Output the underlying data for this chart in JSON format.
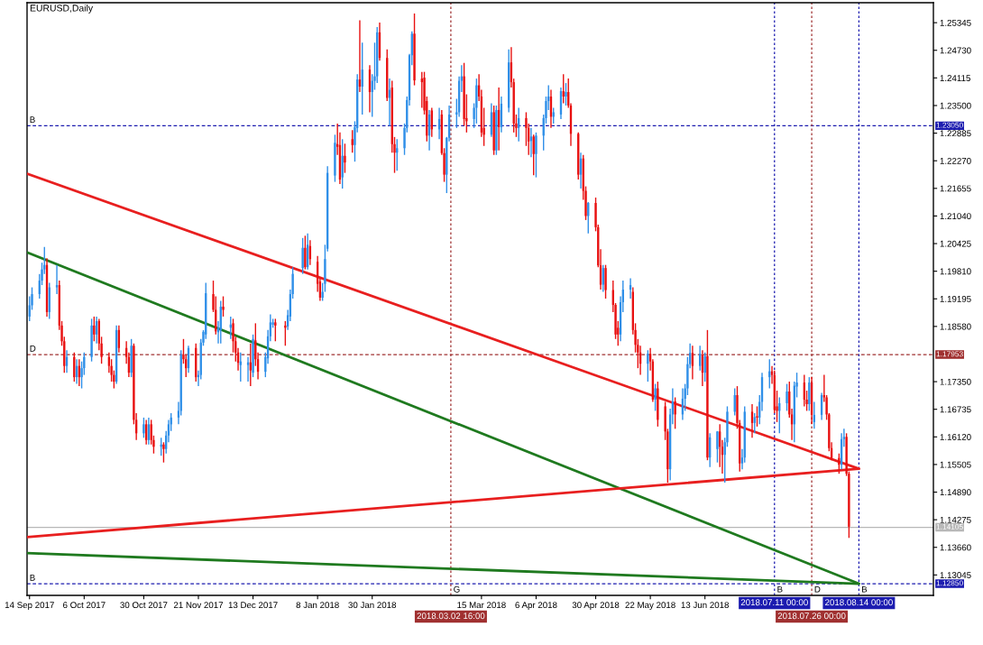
{
  "chart_data": {
    "type": "candlestick",
    "title": "EURUSD,Daily",
    "x": [
      "2017-09-14",
      "2017-09-15",
      "2017-09-18",
      "2017-09-19",
      "2017-09-20",
      "2017-09-21",
      "2017-09-22",
      "2017-09-25",
      "2017-09-26",
      "2017-09-27",
      "2017-09-28",
      "2017-09-29",
      "2017-10-02",
      "2017-10-03",
      "2017-10-04",
      "2017-10-05",
      "2017-10-06",
      "2017-10-09",
      "2017-10-10",
      "2017-10-11",
      "2017-10-12",
      "2017-10-13",
      "2017-10-16",
      "2017-10-17",
      "2017-10-18",
      "2017-10-19",
      "2017-10-20",
      "2017-10-23",
      "2017-10-24",
      "2017-10-25",
      "2017-10-26",
      "2017-10-27",
      "2017-10-30",
      "2017-10-31",
      "2017-11-01",
      "2017-11-02",
      "2017-11-03",
      "2017-11-06",
      "2017-11-07",
      "2017-11-08",
      "2017-11-09",
      "2017-11-10",
      "2017-11-13",
      "2017-11-14",
      "2017-11-15",
      "2017-11-16",
      "2017-11-17",
      "2017-11-20",
      "2017-11-21",
      "2017-11-22",
      "2017-11-23",
      "2017-11-24",
      "2017-11-27",
      "2017-11-28",
      "2017-11-29",
      "2017-11-30",
      "2017-12-01",
      "2017-12-04",
      "2017-12-05",
      "2017-12-06",
      "2017-12-07",
      "2017-12-08",
      "2017-12-11",
      "2017-12-12",
      "2017-12-13",
      "2017-12-14",
      "2017-12-15",
      "2017-12-18",
      "2017-12-19",
      "2017-12-20",
      "2017-12-21",
      "2017-12-22",
      "2017-12-26",
      "2017-12-27",
      "2017-12-28",
      "2017-12-29",
      "2018-01-02",
      "2018-01-03",
      "2018-01-04",
      "2018-01-05",
      "2018-01-08",
      "2018-01-09",
      "2018-01-10",
      "2018-01-11",
      "2018-01-12",
      "2018-01-15",
      "2018-01-16",
      "2018-01-17",
      "2018-01-18",
      "2018-01-19",
      "2018-01-22",
      "2018-01-23",
      "2018-01-24",
      "2018-01-25",
      "2018-01-26",
      "2018-01-29",
      "2018-01-30",
      "2018-01-31",
      "2018-02-01",
      "2018-02-02",
      "2018-02-05",
      "2018-02-06",
      "2018-02-07",
      "2018-02-08",
      "2018-02-09",
      "2018-02-12",
      "2018-02-13",
      "2018-02-14",
      "2018-02-15",
      "2018-02-16",
      "2018-02-19",
      "2018-02-20",
      "2018-02-21",
      "2018-02-22",
      "2018-02-23",
      "2018-02-26",
      "2018-02-27",
      "2018-02-28",
      "2018-03-01",
      "2018-03-02",
      "2018-03-05",
      "2018-03-06",
      "2018-03-07",
      "2018-03-08",
      "2018-03-09",
      "2018-03-12",
      "2018-03-13",
      "2018-03-14",
      "2018-03-15",
      "2018-03-16",
      "2018-03-19",
      "2018-03-20",
      "2018-03-21",
      "2018-03-22",
      "2018-03-23",
      "2018-03-26",
      "2018-03-27",
      "2018-03-28",
      "2018-03-29",
      "2018-03-30",
      "2018-04-02",
      "2018-04-03",
      "2018-04-04",
      "2018-04-05",
      "2018-04-06",
      "2018-04-09",
      "2018-04-10",
      "2018-04-11",
      "2018-04-12",
      "2018-04-13",
      "2018-04-16",
      "2018-04-17",
      "2018-04-18",
      "2018-04-19",
      "2018-04-20",
      "2018-04-23",
      "2018-04-24",
      "2018-04-25",
      "2018-04-26",
      "2018-04-27",
      "2018-04-30",
      "2018-05-01",
      "2018-05-02",
      "2018-05-03",
      "2018-05-04",
      "2018-05-07",
      "2018-05-08",
      "2018-05-09",
      "2018-05-10",
      "2018-05-11",
      "2018-05-14",
      "2018-05-15",
      "2018-05-16",
      "2018-05-17",
      "2018-05-18",
      "2018-05-21",
      "2018-05-22",
      "2018-05-23",
      "2018-05-24",
      "2018-05-25",
      "2018-05-28",
      "2018-05-29",
      "2018-05-30",
      "2018-05-31",
      "2018-06-01",
      "2018-06-04",
      "2018-06-05",
      "2018-06-06",
      "2018-06-07",
      "2018-06-08",
      "2018-06-11",
      "2018-06-12",
      "2018-06-13",
      "2018-06-14",
      "2018-06-15",
      "2018-06-18",
      "2018-06-19",
      "2018-06-20",
      "2018-06-21",
      "2018-06-22",
      "2018-06-25",
      "2018-06-26",
      "2018-06-27",
      "2018-06-28",
      "2018-06-29",
      "2018-07-02",
      "2018-07-03",
      "2018-07-04",
      "2018-07-05",
      "2018-07-06",
      "2018-07-09",
      "2018-07-10",
      "2018-07-11",
      "2018-07-12",
      "2018-07-13",
      "2018-07-16",
      "2018-07-17",
      "2018-07-18",
      "2018-07-19",
      "2018-07-20",
      "2018-07-23",
      "2018-07-24",
      "2018-07-25",
      "2018-07-26",
      "2018-07-27",
      "2018-07-30",
      "2018-07-31",
      "2018-08-01",
      "2018-08-02",
      "2018-08-03",
      "2018-08-06",
      "2018-08-07",
      "2018-08-08",
      "2018-08-09",
      "2018-08-10"
    ],
    "ohlc": [
      [
        1.188,
        1.1925,
        1.187,
        1.1905
      ],
      [
        1.1905,
        1.1945,
        1.1895,
        1.193
      ],
      [
        1.193,
        1.1975,
        1.192,
        1.196
      ],
      [
        1.196,
        1.2,
        1.195,
        1.1985
      ],
      [
        1.1985,
        1.2035,
        1.1975,
        1.1995
      ],
      [
        1.1995,
        1.201,
        1.188,
        1.189
      ],
      [
        1.189,
        1.1955,
        1.1875,
        1.1945
      ],
      [
        1.1945,
        1.1995,
        1.193,
        1.195
      ],
      [
        1.195,
        1.196,
        1.185,
        1.186
      ],
      [
        1.186,
        1.187,
        1.1815,
        1.1825
      ],
      [
        1.1825,
        1.1835,
        1.1755,
        1.177
      ],
      [
        1.177,
        1.1805,
        1.1755,
        1.179
      ],
      [
        1.179,
        1.18,
        1.1735,
        1.1745
      ],
      [
        1.1745,
        1.1785,
        1.173,
        1.177
      ],
      [
        1.177,
        1.1785,
        1.1725,
        1.1745
      ],
      [
        1.1745,
        1.178,
        1.172,
        1.1765
      ],
      [
        1.1765,
        1.18,
        1.175,
        1.179
      ],
      [
        1.179,
        1.1875,
        1.178,
        1.186
      ],
      [
        1.186,
        1.188,
        1.1825,
        1.184
      ],
      [
        1.184,
        1.188,
        1.182,
        1.187
      ],
      [
        1.187,
        1.1875,
        1.1805,
        1.182
      ],
      [
        1.182,
        1.1835,
        1.1775,
        1.179
      ],
      [
        1.179,
        1.18,
        1.1755,
        1.177
      ],
      [
        1.177,
        1.1785,
        1.1735,
        1.175
      ],
      [
        1.175,
        1.176,
        1.172,
        1.1735
      ],
      [
        1.1735,
        1.186,
        1.173,
        1.185
      ],
      [
        1.185,
        1.186,
        1.18,
        1.181
      ],
      [
        1.181,
        1.1825,
        1.1775,
        1.179
      ],
      [
        1.179,
        1.18,
        1.1745,
        1.1755
      ],
      [
        1.1755,
        1.183,
        1.1745,
        1.1815
      ],
      [
        1.1815,
        1.182,
        1.164,
        1.165
      ],
      [
        1.165,
        1.1665,
        1.1605,
        1.162
      ],
      [
        1.162,
        1.1655,
        1.161,
        1.164
      ],
      [
        1.164,
        1.165,
        1.1595,
        1.1605
      ],
      [
        1.1605,
        1.1655,
        1.1595,
        1.164
      ],
      [
        1.164,
        1.165,
        1.1595,
        1.1605
      ],
      [
        1.1605,
        1.1615,
        1.1575,
        1.159
      ],
      [
        1.159,
        1.161,
        1.157,
        1.1595
      ],
      [
        1.1595,
        1.16,
        1.1555,
        1.1585
      ],
      [
        1.1585,
        1.1625,
        1.1575,
        1.1615
      ],
      [
        1.1615,
        1.165,
        1.16,
        1.164
      ],
      [
        1.164,
        1.1665,
        1.1625,
        1.1655
      ],
      [
        1.1655,
        1.169,
        1.164,
        1.167
      ],
      [
        1.167,
        1.1805,
        1.166,
        1.1795
      ],
      [
        1.1795,
        1.183,
        1.1775,
        1.1785
      ],
      [
        1.1785,
        1.1795,
        1.1745,
        1.1765
      ],
      [
        1.1765,
        1.1815,
        1.1755,
        1.181
      ],
      [
        1.181,
        1.182,
        1.1735,
        1.1745
      ],
      [
        1.1745,
        1.176,
        1.1725,
        1.175
      ],
      [
        1.175,
        1.183,
        1.174,
        1.1822
      ],
      [
        1.1822,
        1.185,
        1.1815,
        1.1846
      ],
      [
        1.184,
        1.1955,
        1.183,
        1.1932
      ],
      [
        1.193,
        1.196,
        1.189,
        1.1895
      ],
      [
        1.1895,
        1.1925,
        1.184,
        1.1847
      ],
      [
        1.1845,
        1.187,
        1.182,
        1.1855
      ],
      [
        1.185,
        1.1915,
        1.182,
        1.1902
      ],
      [
        1.1902,
        1.1925,
        1.188,
        1.1895
      ],
      [
        1.1855,
        1.188,
        1.183,
        1.1862
      ],
      [
        1.1865,
        1.1875,
        1.18,
        1.1825
      ],
      [
        1.1825,
        1.1835,
        1.178,
        1.18
      ],
      [
        1.18,
        1.181,
        1.176,
        1.1777
      ],
      [
        1.1772,
        1.18,
        1.1735,
        1.178
      ],
      [
        1.1772,
        1.179,
        1.1735,
        1.1778
      ],
      [
        1.1778,
        1.182,
        1.1725,
        1.176
      ],
      [
        1.1755,
        1.184,
        1.1745,
        1.183
      ],
      [
        1.1827,
        1.1865,
        1.177,
        1.1785
      ],
      [
        1.1785,
        1.18,
        1.174,
        1.1757
      ],
      [
        1.1757,
        1.18,
        1.1745,
        1.179
      ],
      [
        1.1787,
        1.185,
        1.1775,
        1.1836
      ],
      [
        1.1836,
        1.1885,
        1.1825,
        1.1867
      ],
      [
        1.1862,
        1.1875,
        1.1855,
        1.1867
      ],
      [
        1.1867,
        1.1875,
        1.1825,
        1.186
      ],
      [
        1.186,
        1.187,
        1.1815,
        1.1855
      ],
      [
        1.1858,
        1.1895,
        1.185,
        1.1883
      ],
      [
        1.188,
        1.194,
        1.187,
        1.193
      ],
      [
        1.193,
        1.199,
        1.192,
        1.1975
      ],
      [
        1.1988,
        1.2055,
        1.1975,
        1.2033
      ],
      [
        1.2033,
        1.206,
        1.1985,
        1.199
      ],
      [
        1.199,
        1.2065,
        1.1985,
        1.204
      ],
      [
        1.2037,
        1.205,
        1.1995,
        1.2008
      ],
      [
        1.2002,
        1.2015,
        1.1935,
        1.1953
      ],
      [
        1.1958,
        1.1965,
        1.1915,
        1.1922
      ],
      [
        1.1922,
        1.1955,
        1.1915,
        1.1935
      ],
      [
        1.1953,
        1.204,
        1.1935,
        1.2008
      ],
      [
        1.2031,
        1.2215,
        1.2025,
        1.22
      ],
      [
        1.2194,
        1.2285,
        1.218,
        1.2267
      ],
      [
        1.2264,
        1.231,
        1.224,
        1.2258
      ],
      [
        1.2262,
        1.229,
        1.2175,
        1.2185
      ],
      [
        1.219,
        1.2275,
        1.2165,
        1.2238
      ],
      [
        1.2238,
        1.2265,
        1.22,
        1.2223
      ],
      [
        1.2275,
        1.2295,
        1.2245,
        1.2262
      ],
      [
        1.2262,
        1.2315,
        1.2225,
        1.2302
      ],
      [
        1.23,
        1.242,
        1.229,
        1.2408
      ],
      [
        1.2408,
        1.254,
        1.238,
        1.2392
      ],
      [
        1.2392,
        1.249,
        1.233,
        1.243
      ],
      [
        1.243,
        1.244,
        1.2335,
        1.238
      ],
      [
        1.238,
        1.242,
        1.2325,
        1.2405
      ],
      [
        1.2405,
        1.249,
        1.2385,
        1.2415
      ],
      [
        1.2415,
        1.2525,
        1.24,
        1.2513
      ],
      [
        1.2513,
        1.2535,
        1.245,
        1.2456
      ],
      [
        1.2456,
        1.2475,
        1.236,
        1.2367
      ],
      [
        1.2367,
        1.241,
        1.2305,
        1.2385
      ],
      [
        1.239,
        1.2405,
        1.2245,
        1.2264
      ],
      [
        1.2264,
        1.228,
        1.22,
        1.2245
      ],
      [
        1.2245,
        1.2275,
        1.2205,
        1.2255
      ],
      [
        1.2255,
        1.231,
        1.224,
        1.23
      ],
      [
        1.23,
        1.237,
        1.229,
        1.2362
      ],
      [
        1.2362,
        1.2465,
        1.235,
        1.2462
      ],
      [
        1.2462,
        1.2515,
        1.244,
        1.251
      ],
      [
        1.251,
        1.2555,
        1.2395,
        1.2406
      ],
      [
        1.241,
        1.2425,
        1.2345,
        1.2402
      ],
      [
        1.2412,
        1.2425,
        1.233,
        1.2339
      ],
      [
        1.236,
        1.237,
        1.227,
        1.2283
      ],
      [
        1.2283,
        1.234,
        1.225,
        1.233
      ],
      [
        1.2339,
        1.2345,
        1.228,
        1.2297
      ],
      [
        1.2297,
        1.2345,
        1.2275,
        1.232
      ],
      [
        1.233,
        1.234,
        1.224,
        1.2244
      ],
      [
        1.2244,
        1.2255,
        1.218,
        1.2196
      ],
      [
        1.2196,
        1.228,
        1.2155,
        1.2278
      ],
      [
        1.2278,
        1.235,
        1.227,
        1.233
      ],
      [
        1.233,
        1.2365,
        1.23,
        1.2335
      ],
      [
        1.2335,
        1.2415,
        1.2325,
        1.2405
      ],
      [
        1.2405,
        1.244,
        1.238,
        1.2415
      ],
      [
        1.2415,
        1.2445,
        1.2305,
        1.232
      ],
      [
        1.2322,
        1.2375,
        1.229,
        1.2315
      ],
      [
        1.232,
        1.2355,
        1.23,
        1.2345
      ],
      [
        1.2345,
        1.241,
        1.231,
        1.2395
      ],
      [
        1.2395,
        1.242,
        1.236,
        1.237
      ],
      [
        1.237,
        1.2385,
        1.228,
        1.229
      ],
      [
        1.23,
        1.2345,
        1.226,
        1.2285
      ],
      [
        1.2285,
        1.2355,
        1.228,
        1.2335
      ],
      [
        1.2335,
        1.235,
        1.224,
        1.225
      ],
      [
        1.225,
        1.235,
        1.224,
        1.234
      ],
      [
        1.234,
        1.239,
        1.225,
        1.2302
      ],
      [
        1.2302,
        1.237,
        1.229,
        1.2354
      ],
      [
        1.2345,
        1.2475,
        1.2335,
        1.2446
      ],
      [
        1.2446,
        1.248,
        1.239,
        1.2402
      ],
      [
        1.2402,
        1.241,
        1.229,
        1.231
      ],
      [
        1.231,
        1.233,
        1.228,
        1.23
      ],
      [
        1.23,
        1.2345,
        1.227,
        1.2322
      ],
      [
        1.2322,
        1.2335,
        1.226,
        1.23
      ],
      [
        1.23,
        1.231,
        1.224,
        1.227
      ],
      [
        1.2271,
        1.23,
        1.2235,
        1.2281
      ],
      [
        1.2281,
        1.2285,
        1.2195,
        1.2242
      ],
      [
        1.2242,
        1.229,
        1.219,
        1.2283
      ],
      [
        1.2283,
        1.233,
        1.225,
        1.2322
      ],
      [
        1.2322,
        1.237,
        1.231,
        1.236
      ],
      [
        1.236,
        1.2395,
        1.234,
        1.237
      ],
      [
        1.237,
        1.2385,
        1.23,
        1.2325
      ],
      [
        1.2325,
        1.2345,
        1.231,
        1.2335
      ],
      [
        1.233,
        1.239,
        1.232,
        1.2382
      ],
      [
        1.2382,
        1.242,
        1.2355,
        1.237
      ],
      [
        1.237,
        1.24,
        1.235,
        1.238
      ],
      [
        1.238,
        1.241,
        1.2345,
        1.235
      ],
      [
        1.235,
        1.2355,
        1.226,
        1.2287
      ],
      [
        1.2287,
        1.229,
        1.2185,
        1.2196
      ],
      [
        1.2196,
        1.2245,
        1.2165,
        1.2232
      ],
      [
        1.2232,
        1.224,
        1.214,
        1.216
      ],
      [
        1.216,
        1.217,
        1.2095,
        1.2104
      ],
      [
        1.2104,
        1.2135,
        1.2065,
        1.2133
      ],
      [
        1.2133,
        1.2145,
        1.207,
        1.2079
      ],
      [
        1.2079,
        1.2085,
        1.199,
        1.1994
      ],
      [
        1.1994,
        1.203,
        1.194,
        1.1951
      ],
      [
        1.1951,
        1.1995,
        1.1935,
        1.1988
      ],
      [
        1.1988,
        1.1995,
        1.192,
        1.1939
      ],
      [
        1.1939,
        1.196,
        1.189,
        1.1906
      ],
      [
        1.1906,
        1.191,
        1.183,
        1.184
      ],
      [
        1.1855,
        1.187,
        1.1815,
        1.184
      ],
      [
        1.184,
        1.1925,
        1.1825,
        1.1912
      ],
      [
        1.1912,
        1.196,
        1.189,
        1.194
      ],
      [
        1.194,
        1.1965,
        1.192,
        1.195
      ],
      [
        1.1935,
        1.1945,
        1.184,
        1.185
      ],
      [
        1.185,
        1.1865,
        1.18,
        1.1817
      ],
      [
        1.1817,
        1.183,
        1.1765,
        1.18
      ],
      [
        1.18,
        1.1815,
        1.175,
        1.1775
      ],
      [
        1.1775,
        1.1805,
        1.1735,
        1.1797
      ],
      [
        1.1797,
        1.181,
        1.176,
        1.178
      ],
      [
        1.178,
        1.1785,
        1.169,
        1.1695
      ],
      [
        1.1695,
        1.173,
        1.167,
        1.172
      ],
      [
        1.172,
        1.1735,
        1.1635,
        1.165
      ],
      [
        1.168,
        1.169,
        1.1605,
        1.1624
      ],
      [
        1.1624,
        1.163,
        1.151,
        1.154
      ],
      [
        1.154,
        1.1675,
        1.1515,
        1.1662
      ],
      [
        1.1662,
        1.172,
        1.164,
        1.1691
      ],
      [
        1.1691,
        1.17,
        1.163,
        1.1662
      ],
      [
        1.1662,
        1.172,
        1.165,
        1.1697
      ],
      [
        1.1697,
        1.173,
        1.167,
        1.172
      ],
      [
        1.172,
        1.179,
        1.1705,
        1.1774
      ],
      [
        1.1774,
        1.182,
        1.1765,
        1.1799
      ],
      [
        1.1799,
        1.1815,
        1.174,
        1.177
      ],
      [
        1.177,
        1.1815,
        1.176,
        1.1797
      ],
      [
        1.1795,
        1.1805,
        1.1725,
        1.1755
      ],
      [
        1.1755,
        1.18,
        1.1735,
        1.1792
      ],
      [
        1.1792,
        1.185,
        1.156,
        1.1566
      ],
      [
        1.1566,
        1.162,
        1.1545,
        1.1611
      ],
      [
        1.1585,
        1.1625,
        1.1555,
        1.1624
      ],
      [
        1.1624,
        1.164,
        1.1545,
        1.159
      ],
      [
        1.159,
        1.1605,
        1.153,
        1.1572
      ],
      [
        1.1572,
        1.161,
        1.151,
        1.16
      ],
      [
        1.16,
        1.168,
        1.159,
        1.1668
      ],
      [
        1.1668,
        1.172,
        1.166,
        1.1705
      ],
      [
        1.1705,
        1.1725,
        1.163,
        1.1643
      ],
      [
        1.1643,
        1.165,
        1.1535,
        1.1553
      ],
      [
        1.1553,
        1.1585,
        1.154,
        1.1566
      ],
      [
        1.1566,
        1.168,
        1.1555,
        1.1668
      ],
      [
        1.1668,
        1.1685,
        1.161,
        1.1643
      ],
      [
        1.1643,
        1.1665,
        1.162,
        1.1656
      ],
      [
        1.1658,
        1.168,
        1.1635,
        1.1655
      ],
      [
        1.1655,
        1.1705,
        1.164,
        1.169
      ],
      [
        1.169,
        1.1755,
        1.167,
        1.1745
      ],
      [
        1.1745,
        1.1785,
        1.172,
        1.1758
      ],
      [
        1.1758,
        1.177,
        1.173,
        1.175
      ],
      [
        1.175,
        1.176,
        1.1665,
        1.1672
      ],
      [
        1.168,
        1.1715,
        1.1645,
        1.167
      ],
      [
        1.167,
        1.17,
        1.162,
        1.1687
      ],
      [
        1.1687,
        1.173,
        1.167,
        1.1713
      ],
      [
        1.1713,
        1.1735,
        1.1655,
        1.1662
      ],
      [
        1.1662,
        1.1675,
        1.1605,
        1.164
      ],
      [
        1.164,
        1.1735,
        1.16,
        1.1726
      ],
      [
        1.1724,
        1.1755,
        1.17,
        1.1733
      ],
      [
        1.1733,
        1.175,
        1.168,
        1.1695
      ],
      [
        1.1695,
        1.1715,
        1.167,
        1.1685
      ],
      [
        1.1685,
        1.1745,
        1.167,
        1.1733
      ],
      [
        1.1733,
        1.1745,
        1.164,
        1.1661
      ],
      [
        1.1645,
        1.169,
        1.163,
        1.1661
      ],
      [
        1.1661,
        1.171,
        1.165,
        1.1705
      ],
      [
        1.1705,
        1.175,
        1.169,
        1.17
      ],
      [
        1.17,
        1.1705,
        1.165,
        1.1662
      ],
      [
        1.1662,
        1.1665,
        1.158,
        1.1587
      ],
      [
        1.1587,
        1.16,
        1.156,
        1.1565
      ],
      [
        1.1565,
        1.1575,
        1.153,
        1.155
      ],
      [
        1.155,
        1.162,
        1.154,
        1.1607
      ],
      [
        1.1607,
        1.163,
        1.159,
        1.1612
      ],
      [
        1.1612,
        1.162,
        1.1525,
        1.153
      ],
      [
        1.153,
        1.1535,
        1.1387,
        1.1412
      ]
    ],
    "colors": [
      "#2f8fe8",
      "#2f8fe8",
      "#2f8fe8",
      "#2f8fe8",
      "#2f8fe8",
      "#e81010",
      "#2f8fe8",
      "#2f8fe8",
      "#e81010",
      "#e81010",
      "#e81010",
      "#2f8fe8",
      "#e81010",
      "#2f8fe8",
      "#e81010",
      "#2f8fe8",
      "#2f8fe8",
      "#2f8fe8",
      "#e81010",
      "#2f8fe8",
      "#e81010",
      "#e81010",
      "#e81010",
      "#e81010",
      "#e81010",
      "#2f8fe8",
      "#e81010",
      "#e81010",
      "#e81010",
      "#2f8fe8",
      "#e81010",
      "#e81010",
      "#2f8fe8",
      "#e81010",
      "#2f8fe8",
      "#e81010",
      "#e81010",
      "#2f8fe8",
      "#e81010",
      "#2f8fe8",
      "#2f8fe8",
      "#2f8fe8",
      "#2f8fe8",
      "#2f8fe8",
      "#e81010",
      "#e81010",
      "#2f8fe8",
      "#e81010",
      "#2f8fe8",
      "#2f8fe8",
      "#2f8fe8",
      "#2f8fe8",
      "#e81010",
      "#e81010",
      "#2f8fe8",
      "#2f8fe8",
      "#e81010",
      "#2f8fe8",
      "#e81010",
      "#e81010",
      "#e81010",
      "#2f8fe8",
      "#2f8fe8",
      "#e81010",
      "#2f8fe8",
      "#e81010",
      "#e81010",
      "#2f8fe8",
      "#2f8fe8",
      "#2f8fe8",
      "#2f8fe8",
      "#e81010",
      "#e81010",
      "#2f8fe8",
      "#2f8fe8",
      "#2f8fe8",
      "#2f8fe8",
      "#e81010",
      "#2f8fe8",
      "#e81010",
      "#e81010",
      "#e81010",
      "#2f8fe8",
      "#2f8fe8",
      "#2f8fe8",
      "#2f8fe8",
      "#e81010",
      "#e81010",
      "#2f8fe8",
      "#e81010",
      "#e81010",
      "#2f8fe8",
      "#2f8fe8",
      "#e81010",
      "#2f8fe8",
      "#e81010",
      "#2f8fe8",
      "#2f8fe8",
      "#2f8fe8",
      "#e81010",
      "#e81010",
      "#2f8fe8",
      "#e81010",
      "#e81010",
      "#2f8fe8",
      "#2f8fe8",
      "#2f8fe8",
      "#2f8fe8",
      "#2f8fe8",
      "#e81010",
      "#e81010",
      "#e81010",
      "#e81010",
      "#2f8fe8",
      "#e81010",
      "#2f8fe8",
      "#e81010",
      "#e81010",
      "#2f8fe8",
      "#2f8fe8",
      "#2f8fe8",
      "#2f8fe8",
      "#2f8fe8",
      "#e81010",
      "#e81010",
      "#2f8fe8",
      "#2f8fe8",
      "#e81010",
      "#e81010",
      "#e81010",
      "#2f8fe8",
      "#e81010",
      "#2f8fe8",
      "#e81010",
      "#2f8fe8",
      "#2f8fe8",
      "#e81010",
      "#e81010",
      "#e81010",
      "#2f8fe8",
      "#e81010",
      "#e81010",
      "#2f8fe8",
      "#e81010",
      "#2f8fe8",
      "#2f8fe8",
      "#2f8fe8",
      "#2f8fe8",
      "#e81010",
      "#2f8fe8",
      "#2f8fe8",
      "#e81010",
      "#2f8fe8",
      "#e81010",
      "#e81010",
      "#e81010",
      "#2f8fe8",
      "#e81010",
      "#e81010",
      "#2f8fe8",
      "#e81010",
      "#e81010",
      "#e81010",
      "#2f8fe8",
      "#e81010",
      "#e81010",
      "#e81010",
      "#e81010",
      "#2f8fe8",
      "#2f8fe8",
      "#2f8fe8",
      "#e81010",
      "#e81010",
      "#e81010",
      "#e81010",
      "#2f8fe8",
      "#e81010",
      "#e81010",
      "#2f8fe8",
      "#e81010",
      "#e81010",
      "#e81010",
      "#2f8fe8",
      "#2f8fe8",
      "#e81010",
      "#2f8fe8",
      "#2f8fe8",
      "#2f8fe8",
      "#2f8fe8",
      "#e81010",
      "#2f8fe8",
      "#e81010",
      "#2f8fe8",
      "#e81010",
      "#2f8fe8",
      "#2f8fe8",
      "#e81010",
      "#e81010",
      "#2f8fe8",
      "#2f8fe8",
      "#2f8fe8",
      "#e81010",
      "#e81010",
      "#2f8fe8",
      "#2f8fe8",
      "#e81010",
      "#2f8fe8",
      "#e81010",
      "#2f8fe8",
      "#2f8fe8",
      "#2f8fe8",
      "#e81010",
      "#e81010",
      "#e81010",
      "#2f8fe8",
      "#2f8fe8",
      "#e81010",
      "#e81010",
      "#2f8fe8",
      "#2f8fe8",
      "#e81010",
      "#e81010",
      "#2f8fe8",
      "#e81010",
      "#2f8fe8",
      "#2f8fe8",
      "#e81010",
      "#e81010",
      "#e81010",
      "#e81010",
      "#e81010",
      "#2f8fe8",
      "#2f8fe8",
      "#e81010",
      "#e81010"
    ],
    "series": [
      {
        "type": "line",
        "x": [
          "2017-09-13",
          "2018-08-14"
        ],
        "values": [
          1.2198,
          1.1541
        ],
        "color": "#e81f1f"
      },
      {
        "type": "line",
        "x": [
          "2017-09-13",
          "2018-08-14"
        ],
        "values": [
          1.2023,
          1.1285
        ],
        "color": "#1f7a1f"
      },
      {
        "type": "line",
        "x": [
          "2017-09-13",
          "2018-08-14"
        ],
        "values": [
          1.1389,
          1.1541
        ],
        "color": "#e81f1f"
      },
      {
        "type": "line",
        "x": [
          "2017-09-13",
          "2018-08-14"
        ],
        "values": [
          1.1353,
          1.1285
        ],
        "color": "#1f7a1f"
      }
    ],
    "ref_lines": [
      {
        "axis": "y",
        "value": 1.2305,
        "label": "1.23050",
        "color": "#1c1cb0",
        "line_style": "dashed"
      },
      {
        "axis": "y",
        "value": 1.17953,
        "label": "1.17953",
        "color": "#a03030",
        "line_style": "dashed"
      },
      {
        "axis": "y",
        "value": 1.14105,
        "label": "1.14105",
        "color": "#b8b8b8",
        "line_style": "solid"
      },
      {
        "axis": "y",
        "value": 1.1285,
        "label": "1.12850",
        "color": "#1c1cb0",
        "line_style": "dashed"
      },
      {
        "axis": "x",
        "value": "2018-03-02T16:00",
        "label": "2018.03.02 16:00",
        "color": "#a03030",
        "line_style": "dotted"
      },
      {
        "axis": "x",
        "value": "2018-07-11T00:00",
        "label": "2018.07.11 00:00",
        "color": "#1c1cb0",
        "line_style": "dotted"
      },
      {
        "axis": "x",
        "value": "2018-07-26T00:00",
        "label": "2018.07.26 00:00",
        "color": "#a03030",
        "line_style": "dotted"
      },
      {
        "axis": "x",
        "value": "2018-08-14T00:00",
        "label": "2018.08.14 00:00",
        "color": "#1c1cb0",
        "line_style": "dotted"
      }
    ],
    "annotations": [
      {
        "text": "B",
        "x": "2017-09-13",
        "y": 1.2305
      },
      {
        "text": "D",
        "x": "2017-09-13",
        "y": 1.17953
      },
      {
        "text": "B",
        "x": "2017-09-13",
        "y": 1.1285
      },
      {
        "text": "G",
        "x": "2018-03-02T16:00",
        "y": 1.1259
      },
      {
        "text": "B",
        "x": "2018-07-11T00:00",
        "y": 1.1259
      },
      {
        "text": "D",
        "x": "2018-07-26T00:00",
        "y": 1.1259
      },
      {
        "text": "B",
        "x": "2018-08-14T00:00",
        "y": 1.1259
      }
    ],
    "xlim": [
      "2017-09-13",
      "2018-09-13"
    ],
    "xticks": [
      {
        "value": "2017-09-14",
        "label": "14 Sep 2017"
      },
      {
        "value": "2017-10-06",
        "label": "6 Oct 2017"
      },
      {
        "value": "2017-10-30",
        "label": "30 Oct 2017"
      },
      {
        "value": "2017-11-21",
        "label": "21 Nov 2017"
      },
      {
        "value": "2017-12-13",
        "label": "13 Dec 2017"
      },
      {
        "value": "2018-01-08",
        "label": "8 Jan 2018"
      },
      {
        "value": "2018-01-30",
        "label": "30 Jan 2018"
      },
      {
        "value": "2018-03-15",
        "label": "15 Mar 2018"
      },
      {
        "value": "2018-04-06",
        "label": "6 Apr 2018"
      },
      {
        "value": "2018-04-30",
        "label": "30 Apr 2018"
      },
      {
        "value": "2018-05-22",
        "label": "22 May 2018"
      },
      {
        "value": "2018-06-13",
        "label": "13 Jun 2018"
      }
    ],
    "ylim": [
      1.1259,
      1.2579
    ],
    "yticks": [
      1.25345,
      {
        "value": 1.2473,
        "label": "1.24730"
      },
      1.24115,
      {
        "value": 1.235,
        "label": "1.23500"
      },
      1.22885,
      {
        "value": 1.2227,
        "label": "1.22270"
      },
      1.21655,
      {
        "value": 1.2104,
        "label": "1.21040"
      },
      1.20425,
      {
        "value": 1.1981,
        "label": "1.19810"
      },
      1.19195,
      {
        "value": 1.1858,
        "label": "1.18580"
      },
      {
        "value": 1.1735,
        "label": "1.17350"
      },
      1.16735,
      {
        "value": 1.1612,
        "label": "1.16120"
      },
      1.15505,
      {
        "value": 1.1489,
        "label": "1.14890"
      },
      1.14275,
      {
        "value": 1.1366,
        "label": "1.13660"
      },
      1.13045
    ]
  }
}
